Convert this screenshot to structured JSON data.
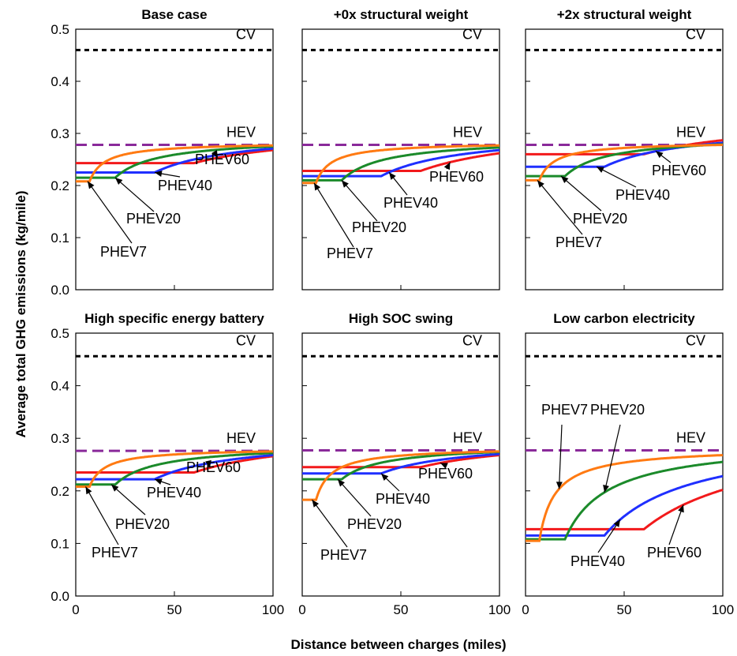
{
  "figure": {
    "ylabel": "Average total GHG emissions  (kg/mile)",
    "xlabel": "Distance between charges (miles)"
  },
  "colors": {
    "PHEV7": "#ff7a12",
    "PHEV20": "#1b8a2a",
    "PHEV40": "#1f2fff",
    "PHEV60": "#f2191b",
    "CV": "#000000",
    "HEV": "#8a2a9a"
  },
  "chart_data": [
    {
      "type": "line",
      "title": "Base case",
      "xlim": [
        0,
        100
      ],
      "ylim": [
        0,
        0.5
      ],
      "xticks": [
        "0",
        "50",
        "100"
      ],
      "yticks": [
        "0.0",
        "0.1",
        "0.2",
        "0.3",
        "0.4",
        "0.5"
      ],
      "reference": [
        {
          "name": "CV",
          "value": 0.46,
          "style": "dotted"
        },
        {
          "name": "HEV",
          "value": 0.278,
          "style": "dashed"
        }
      ],
      "series": [
        {
          "name": "PHEV7",
          "range": 7,
          "flat": 0.208,
          "end": 0.277
        },
        {
          "name": "PHEV20",
          "range": 20,
          "flat": 0.215,
          "end": 0.275
        },
        {
          "name": "PHEV40",
          "range": 40,
          "flat": 0.225,
          "end": 0.271
        },
        {
          "name": "PHEV60",
          "range": 60,
          "flat": 0.243,
          "end": 0.268
        }
      ]
    },
    {
      "type": "line",
      "title": "+0x structural weight",
      "xlim": [
        0,
        100
      ],
      "ylim": [
        0,
        0.5
      ],
      "xticks": [
        "0",
        "50",
        "100"
      ],
      "yticks": [
        "0.0",
        "0.1",
        "0.2",
        "0.3",
        "0.4",
        "0.5"
      ],
      "reference": [
        {
          "name": "CV",
          "value": 0.46,
          "style": "dotted"
        },
        {
          "name": "HEV",
          "value": 0.278,
          "style": "dashed"
        }
      ],
      "series": [
        {
          "name": "PHEV7",
          "range": 7,
          "flat": 0.205,
          "end": 0.277
        },
        {
          "name": "PHEV20",
          "range": 20,
          "flat": 0.21,
          "end": 0.273
        },
        {
          "name": "PHEV40",
          "range": 40,
          "flat": 0.218,
          "end": 0.268
        },
        {
          "name": "PHEV60",
          "range": 60,
          "flat": 0.228,
          "end": 0.262
        }
      ]
    },
    {
      "type": "line",
      "title": "+2x structural weight",
      "xlim": [
        0,
        100
      ],
      "ylim": [
        0,
        0.5
      ],
      "xticks": [
        "0",
        "50",
        "100"
      ],
      "yticks": [
        "0.0",
        "0.1",
        "0.2",
        "0.3",
        "0.4",
        "0.5"
      ],
      "reference": [
        {
          "name": "CV",
          "value": 0.46,
          "style": "dotted"
        },
        {
          "name": "HEV",
          "value": 0.278,
          "style": "dashed"
        }
      ],
      "series": [
        {
          "name": "PHEV7",
          "range": 7,
          "flat": 0.21,
          "end": 0.278
        },
        {
          "name": "PHEV20",
          "range": 20,
          "flat": 0.218,
          "end": 0.279
        },
        {
          "name": "PHEV40",
          "range": 40,
          "flat": 0.236,
          "end": 0.282
        },
        {
          "name": "PHEV60",
          "range": 60,
          "flat": 0.26,
          "end": 0.287
        }
      ]
    },
    {
      "type": "line",
      "title": "High specific energy battery",
      "xlim": [
        0,
        100
      ],
      "ylim": [
        0,
        0.5
      ],
      "xticks": [
        "0",
        "50",
        "100"
      ],
      "yticks": [
        "0.0",
        "0.1",
        "0.2",
        "0.3",
        "0.4",
        "0.5"
      ],
      "reference": [
        {
          "name": "CV",
          "value": 0.456,
          "style": "dotted"
        },
        {
          "name": "HEV",
          "value": 0.276,
          "style": "dashed"
        }
      ],
      "series": [
        {
          "name": "PHEV7",
          "range": 7,
          "flat": 0.208,
          "end": 0.275
        },
        {
          "name": "PHEV20",
          "range": 20,
          "flat": 0.212,
          "end": 0.272
        },
        {
          "name": "PHEV40",
          "range": 40,
          "flat": 0.222,
          "end": 0.268
        },
        {
          "name": "PHEV60",
          "range": 60,
          "flat": 0.235,
          "end": 0.266
        }
      ]
    },
    {
      "type": "line",
      "title": "High SOC swing",
      "xlim": [
        0,
        100
      ],
      "ylim": [
        0,
        0.5
      ],
      "xticks": [
        "0",
        "50",
        "100"
      ],
      "yticks": [
        "0.0",
        "0.1",
        "0.2",
        "0.3",
        "0.4",
        "0.5"
      ],
      "reference": [
        {
          "name": "CV",
          "value": 0.456,
          "style": "dotted"
        },
        {
          "name": "HEV",
          "value": 0.277,
          "style": "dashed"
        }
      ],
      "series": [
        {
          "name": "PHEV7",
          "range": 7,
          "flat": 0.183,
          "end": 0.275
        },
        {
          "name": "PHEV20",
          "range": 20,
          "flat": 0.222,
          "end": 0.274
        },
        {
          "name": "PHEV40",
          "range": 40,
          "flat": 0.233,
          "end": 0.27
        },
        {
          "name": "PHEV60",
          "range": 60,
          "flat": 0.245,
          "end": 0.268
        }
      ]
    },
    {
      "type": "line",
      "title": "Low carbon electricity",
      "xlim": [
        0,
        100
      ],
      "ylim": [
        0,
        0.5
      ],
      "xticks": [
        "0",
        "50",
        "100"
      ],
      "yticks": [
        "0.0",
        "0.1",
        "0.2",
        "0.3",
        "0.4",
        "0.5"
      ],
      "reference": [
        {
          "name": "CV",
          "value": 0.456,
          "style": "dotted"
        },
        {
          "name": "HEV",
          "value": 0.277,
          "style": "dashed"
        }
      ],
      "series": [
        {
          "name": "PHEV7",
          "range": 7,
          "flat": 0.105,
          "end": 0.268
        },
        {
          "name": "PHEV20",
          "range": 20,
          "flat": 0.108,
          "end": 0.255
        },
        {
          "name": "PHEV40",
          "range": 40,
          "flat": 0.115,
          "end": 0.228
        },
        {
          "name": "PHEV60",
          "range": 60,
          "flat": 0.127,
          "end": 0.202
        }
      ]
    }
  ]
}
